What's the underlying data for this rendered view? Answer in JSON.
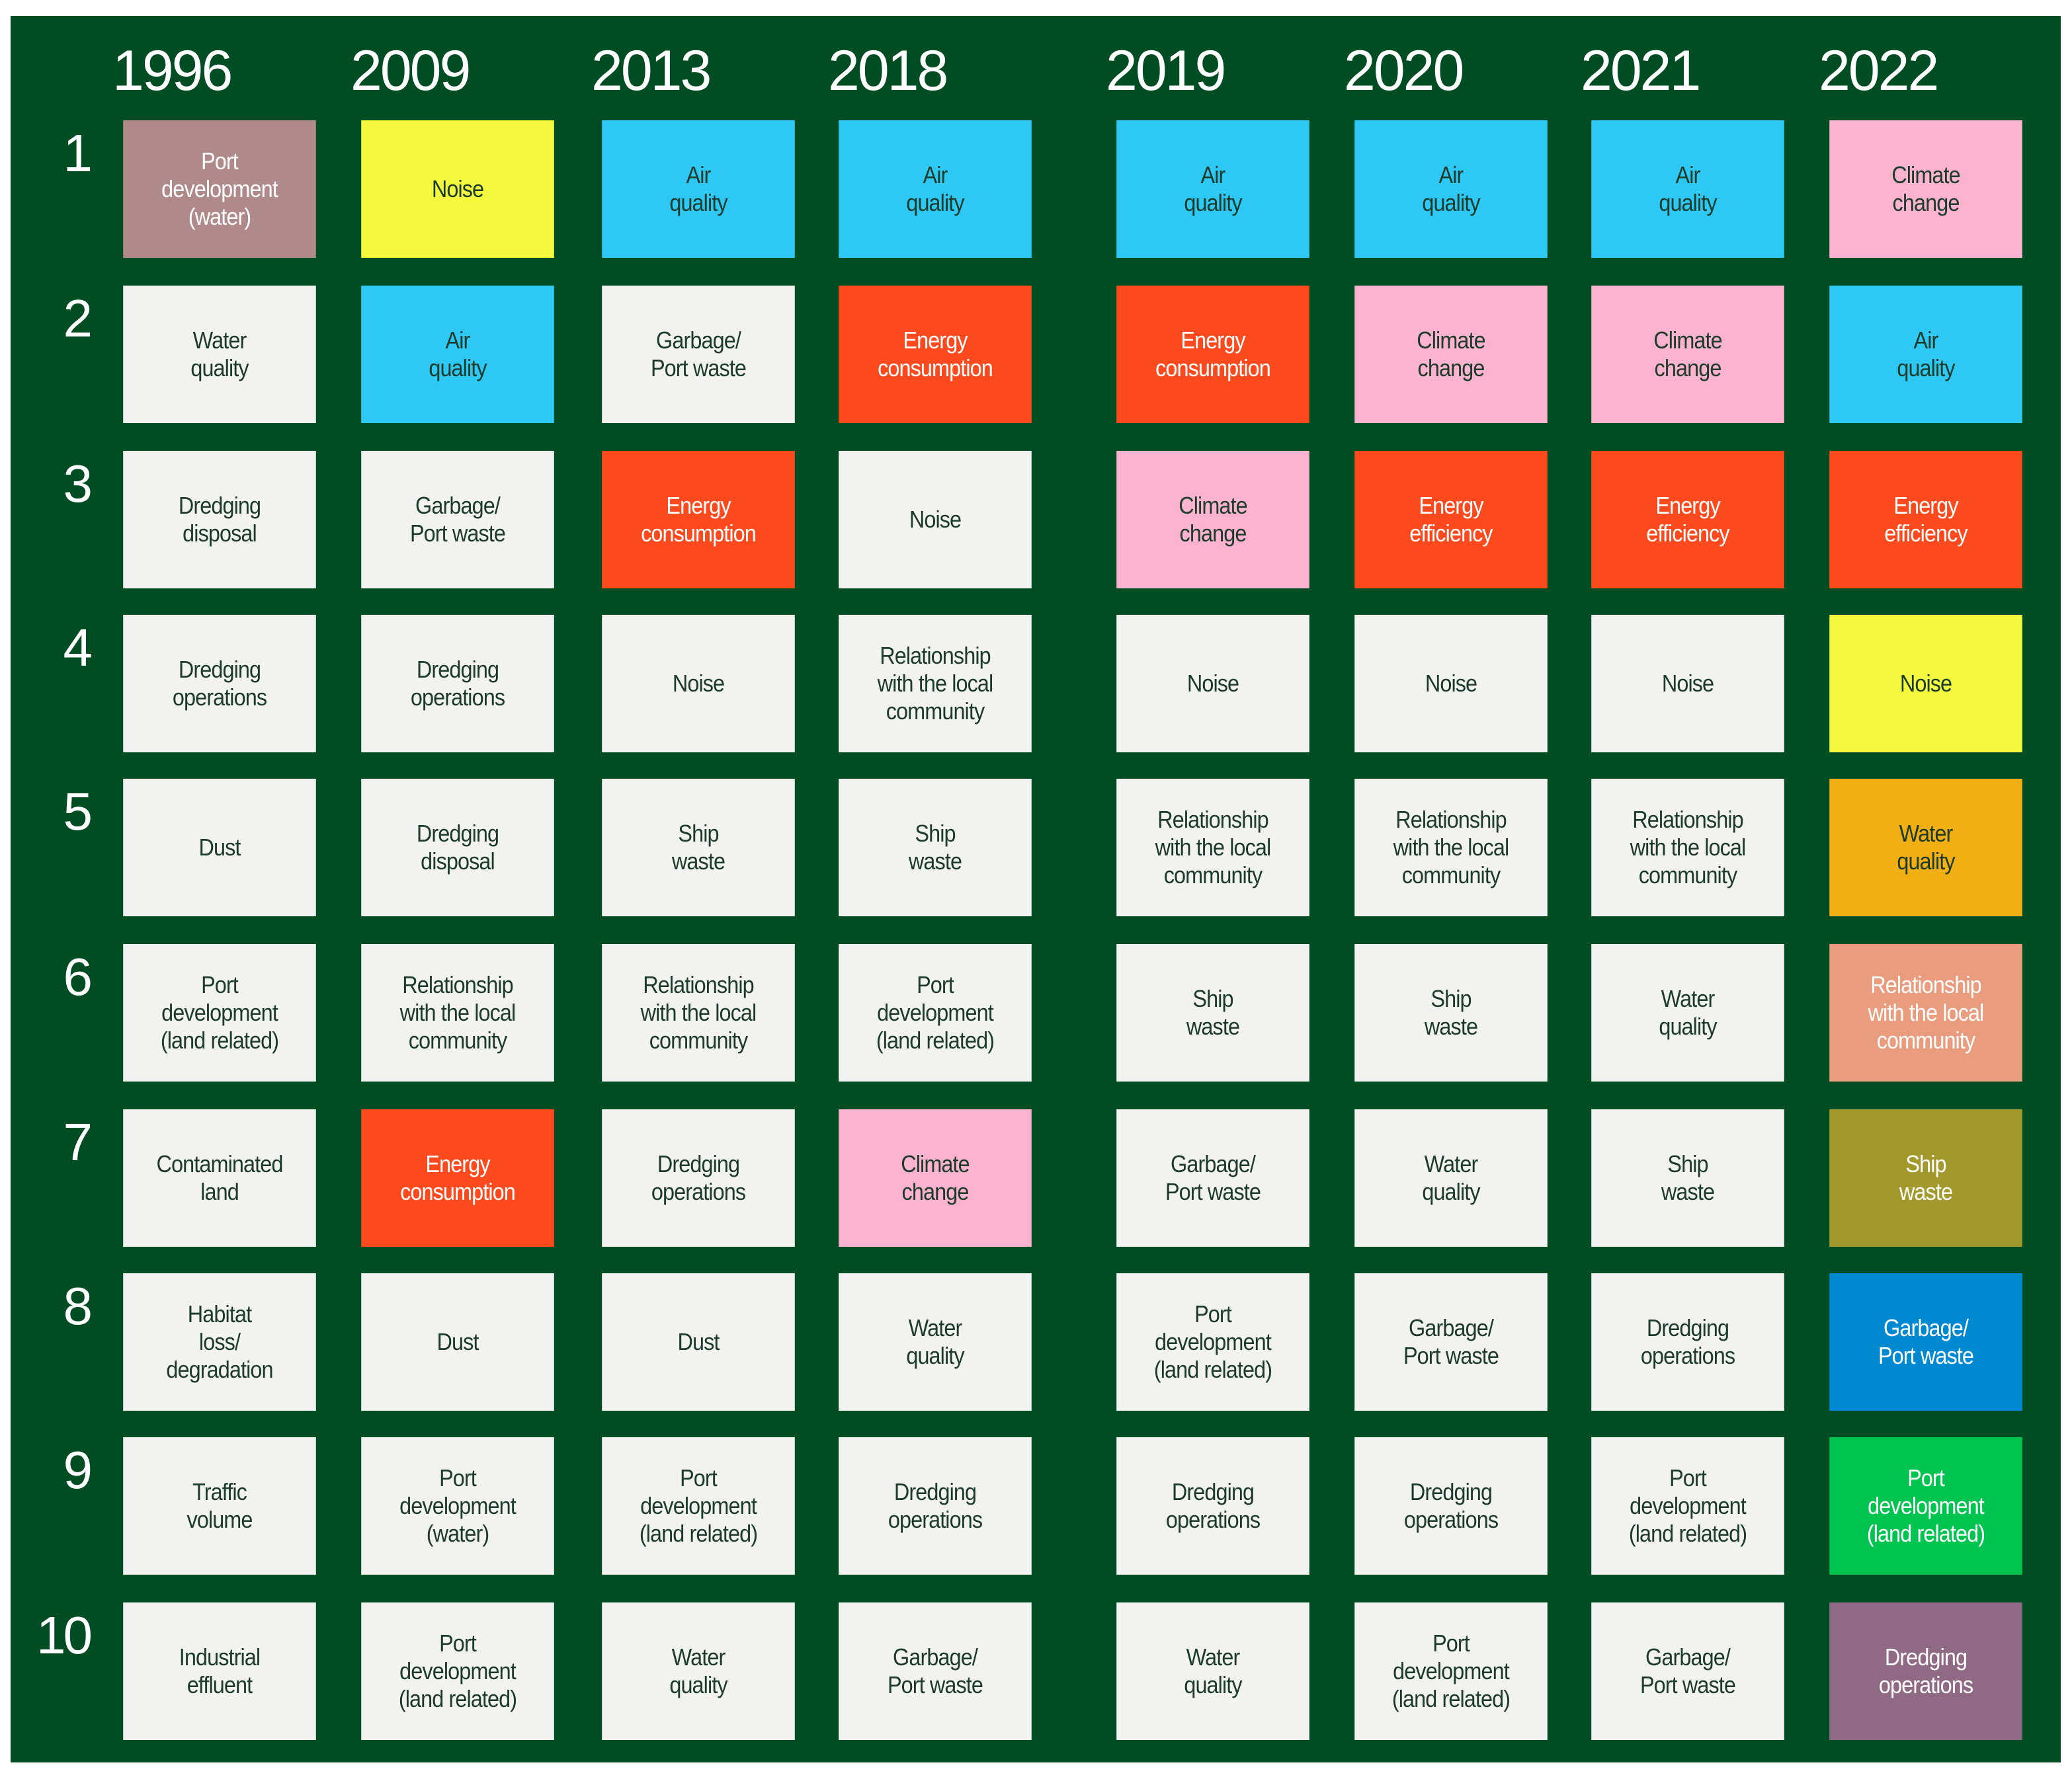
{
  "years": [
    "1996",
    "2009",
    "2013",
    "2018",
    "2019",
    "2020",
    "2021",
    "2022"
  ],
  "ranks": [
    1,
    2,
    3,
    4,
    5,
    6,
    7,
    8,
    9,
    10
  ],
  "columns": [
    [
      {
        "label": "Port\ndevelopment\n(water)",
        "color": "#b08a8a",
        "text_color": "#ffffff"
      },
      {
        "label": "Water\nquality",
        "color": "#f2f2f0"
      },
      {
        "label": "Dredging\ndisposal",
        "color": "#f2f2f0"
      },
      {
        "label": "Dredging\noperations",
        "color": "#f2f2f0"
      },
      {
        "label": "Dust",
        "color": "#f2f2f0"
      },
      {
        "label": "Port\ndevelopment\n(land related)",
        "color": "#f2f2f0"
      },
      {
        "label": "Contaminated\nland",
        "color": "#f2f2f0"
      },
      {
        "label": "Habitat\nloss/\ndegradation",
        "color": "#f2f2f0"
      },
      {
        "label": "Traffic\nvolume",
        "color": "#f2f2f0"
      },
      {
        "label": "Industrial\neffluent",
        "color": "#f2f2f0"
      }
    ],
    [
      {
        "label": "Noise",
        "color": "#f4f940"
      },
      {
        "label": "Air\nquality",
        "color": "#2ec8f5"
      },
      {
        "label": "Garbage/\nPort waste",
        "color": "#f2f2f0"
      },
      {
        "label": "Dredging\noperations",
        "color": "#f2f2f0"
      },
      {
        "label": "Dredging\ndisposal",
        "color": "#f2f2f0"
      },
      {
        "label": "Relationship\nwith the local\ncommunity",
        "color": "#f2f2f0"
      },
      {
        "label": "Energy\nconsumption",
        "color": "#fc4a1e",
        "text_color": "#ffffff"
      },
      {
        "label": "Dust",
        "color": "#f2f2f0"
      },
      {
        "label": "Port\ndevelopment\n(water)",
        "color": "#f2f2f0"
      },
      {
        "label": "Port\ndevelopment\n(land related)",
        "color": "#f2f2f0"
      }
    ],
    [
      {
        "label": "Air\nquality",
        "color": "#2ec8f5"
      },
      {
        "label": "Garbage/\nPort waste",
        "color": "#f2f2f0"
      },
      {
        "label": "Energy\nconsumption",
        "color": "#fc4a1e",
        "text_color": "#ffffff"
      },
      {
        "label": "Noise",
        "color": "#f2f2f0"
      },
      {
        "label": "Ship\nwaste",
        "color": "#f2f2f0"
      },
      {
        "label": "Relationship\nwith the local\ncommunity",
        "color": "#f2f2f0"
      },
      {
        "label": "Dredging\noperations",
        "color": "#f2f2f0"
      },
      {
        "label": "Dust",
        "color": "#f2f2f0"
      },
      {
        "label": "Port\ndevelopment\n(land related)",
        "color": "#f2f2f0"
      },
      {
        "label": "Water\nquality",
        "color": "#f2f2f0"
      }
    ],
    [
      {
        "label": "Air\nquality",
        "color": "#2ec8f5"
      },
      {
        "label": "Energy\nconsumption",
        "color": "#fc4a1e",
        "text_color": "#ffffff"
      },
      {
        "label": "Noise",
        "color": "#f2f2f0"
      },
      {
        "label": "Relationship\nwith the local\ncommunity",
        "color": "#f2f2f0"
      },
      {
        "label": "Ship\nwaste",
        "color": "#f2f2f0"
      },
      {
        "label": "Port\ndevelopment\n(land related)",
        "color": "#f2f2f0"
      },
      {
        "label": "Climate\nchange",
        "color": "#fbb3cf"
      },
      {
        "label": "Water\nquality",
        "color": "#f2f2f0"
      },
      {
        "label": "Dredging\noperations",
        "color": "#f2f2f0"
      },
      {
        "label": "Garbage/\nPort waste",
        "color": "#f2f2f0"
      }
    ],
    [
      {
        "label": "Air\nquality",
        "color": "#2ec8f5"
      },
      {
        "label": "Energy\nconsumption",
        "color": "#fc4a1e",
        "text_color": "#ffffff"
      },
      {
        "label": "Climate\nchange",
        "color": "#fbb3cf"
      },
      {
        "label": "Noise",
        "color": "#f2f2f0"
      },
      {
        "label": "Relationship\nwith the local\ncommunity",
        "color": "#f2f2f0"
      },
      {
        "label": "Ship\nwaste",
        "color": "#f2f2f0"
      },
      {
        "label": "Garbage/\nPort waste",
        "color": "#f2f2f0"
      },
      {
        "label": "Port\ndevelopment\n(land related)",
        "color": "#f2f2f0"
      },
      {
        "label": "Dredging\noperations",
        "color": "#f2f2f0"
      },
      {
        "label": "Water\nquality",
        "color": "#f2f2f0"
      }
    ],
    [
      {
        "label": "Air\nquality",
        "color": "#2ec8f5"
      },
      {
        "label": "Climate\nchange",
        "color": "#fbb3cf"
      },
      {
        "label": "Energy\nefficiency",
        "color": "#fc4a1e",
        "text_color": "#ffffff"
      },
      {
        "label": "Noise",
        "color": "#f2f2f0"
      },
      {
        "label": "Relationship\nwith the local\ncommunity",
        "color": "#f2f2f0"
      },
      {
        "label": "Ship\nwaste",
        "color": "#f2f2f0"
      },
      {
        "label": "Water\nquality",
        "color": "#f2f2f0"
      },
      {
        "label": "Garbage/\nPort waste",
        "color": "#f2f2f0"
      },
      {
        "label": "Dredging\noperations",
        "color": "#f2f2f0"
      },
      {
        "label": "Port\ndevelopment\n(land related)",
        "color": "#f2f2f0"
      }
    ],
    [
      {
        "label": "Air\nquality",
        "color": "#2ec8f5"
      },
      {
        "label": "Climate\nchange",
        "color": "#fbb3cf"
      },
      {
        "label": "Energy\nefficiency",
        "color": "#fc4a1e",
        "text_color": "#ffffff"
      },
      {
        "label": "Noise",
        "color": "#f2f2f0"
      },
      {
        "label": "Relationship\nwith the local\ncommunity",
        "color": "#f2f2f0"
      },
      {
        "label": "Water\nquality",
        "color": "#f2f2f0"
      },
      {
        "label": "Ship\nwaste",
        "color": "#f2f2f0"
      },
      {
        "label": "Dredging\noperations",
        "color": "#f2f2f0"
      },
      {
        "label": "Port\ndevelopment\n(land related)",
        "color": "#f2f2f0"
      },
      {
        "label": "Garbage/\nPort waste",
        "color": "#f2f2f0"
      }
    ],
    [
      {
        "label": "Climate\nchange",
        "color": "#fbb3cf"
      },
      {
        "label": "Air\nquality",
        "color": "#2ec8f5"
      },
      {
        "label": "Energy\nefficiency",
        "color": "#fc4a1e",
        "text_color": "#ffffff"
      },
      {
        "label": "Noise",
        "color": "#f4f940"
      },
      {
        "label": "Water\nquality",
        "color": "#f2af14"
      },
      {
        "label": "Relationship\nwith the local\ncommunity",
        "color": "#e99c7e",
        "text_color": "#ffffff"
      },
      {
        "label": "Ship\nwaste",
        "color": "#a3982b",
        "text_color": "#ffffff"
      },
      {
        "label": "Garbage/\nPort waste",
        "color": "#0088d1",
        "text_color": "#ffffff"
      },
      {
        "label": "Port\ndevelopment\n(land related)",
        "color": "#00c450",
        "text_color": "#ffffff"
      },
      {
        "label": "Dredging\noperations",
        "color": "#906a84",
        "text_color": "#ffffff"
      }
    ]
  ]
}
